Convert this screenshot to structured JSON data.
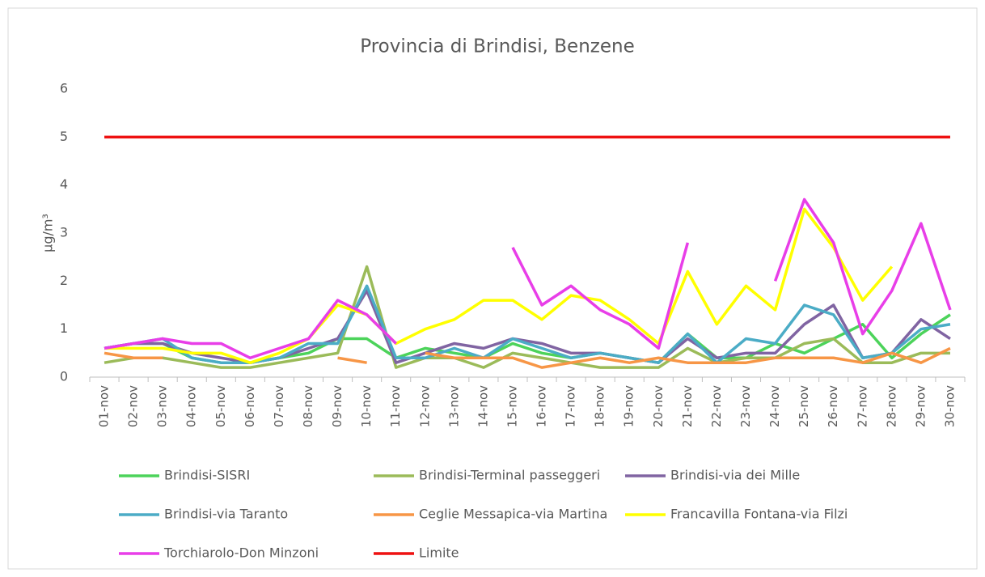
{
  "chart_data": {
    "type": "line",
    "title": "Provincia di Brindisi, Benzene",
    "y_label": "µg/m³",
    "categories": [
      "01-nov",
      "02-nov",
      "03-nov",
      "04-nov",
      "05-nov",
      "06-nov",
      "07-nov",
      "08-nov",
      "09-nov",
      "10-nov",
      "11-nov",
      "12-nov",
      "13-nov",
      "14-nov",
      "15-nov",
      "16-nov",
      "17-nov",
      "18-nov",
      "19-nov",
      "20-nov",
      "21-nov",
      "22-nov",
      "23-nov",
      "24-nov",
      "25-nov",
      "26-nov",
      "27-nov",
      "28-nov",
      "29-nov",
      "30-nov"
    ],
    "ylim": [
      0,
      6
    ],
    "yticks": [
      0,
      1,
      2,
      3,
      4,
      5,
      6
    ],
    "grid": false,
    "series": [
      {
        "name": "Brindisi-SISRI",
        "color": "#4cd35a",
        "values": [
          0.6,
          0.7,
          0.7,
          0.4,
          0.3,
          0.3,
          0.4,
          0.5,
          0.8,
          0.8,
          0.4,
          0.6,
          0.5,
          0.4,
          0.7,
          0.5,
          0.4,
          0.5,
          0.4,
          0.3,
          0.9,
          0.4,
          0.4,
          0.7,
          0.5,
          0.8,
          1.1,
          0.4,
          0.9,
          1.3
        ]
      },
      {
        "name": "Brindisi-Terminal passeggeri",
        "color": "#9bbb59",
        "values": [
          0.3,
          0.4,
          0.4,
          0.3,
          0.2,
          0.2,
          0.3,
          0.4,
          0.5,
          2.3,
          0.2,
          0.4,
          0.4,
          0.2,
          0.5,
          0.4,
          0.3,
          0.2,
          0.2,
          0.2,
          0.6,
          0.3,
          0.4,
          0.4,
          0.7,
          0.8,
          0.3,
          0.3,
          0.5,
          0.5
        ]
      },
      {
        "name": "Brindisi-via dei Mille",
        "color": "#8064a2",
        "values": [
          0.6,
          0.7,
          0.7,
          0.5,
          0.4,
          0.3,
          0.4,
          0.6,
          0.8,
          1.8,
          0.3,
          0.5,
          0.7,
          0.6,
          0.8,
          0.7,
          0.5,
          0.5,
          0.4,
          0.3,
          0.8,
          0.4,
          0.5,
          0.5,
          1.1,
          1.5,
          0.4,
          0.5,
          1.2,
          0.8
        ]
      },
      {
        "name": "Brindisi-via Taranto",
        "color": "#4bacc6",
        "values": [
          0.6,
          0.7,
          0.8,
          0.4,
          0.3,
          0.3,
          0.4,
          0.7,
          0.7,
          1.9,
          0.4,
          0.4,
          0.6,
          0.4,
          0.8,
          0.6,
          0.4,
          0.5,
          0.4,
          0.3,
          0.9,
          0.3,
          0.8,
          0.7,
          1.5,
          1.3,
          0.4,
          0.5,
          1.0,
          1.1
        ]
      },
      {
        "name": "Ceglie Messapica-via Martina",
        "color": "#f79646",
        "values": [
          0.5,
          0.4,
          0.4,
          null,
          null,
          null,
          null,
          null,
          0.4,
          0.3,
          null,
          0.5,
          0.4,
          0.4,
          0.4,
          0.2,
          0.3,
          0.4,
          0.3,
          0.4,
          0.3,
          0.3,
          0.3,
          0.4,
          0.4,
          0.4,
          0.3,
          0.5,
          0.3,
          0.6
        ]
      },
      {
        "name": "Francavilla Fontana-via Filzi",
        "color": "#ffff00",
        "values": [
          0.6,
          0.6,
          0.6,
          0.5,
          0.5,
          0.3,
          0.5,
          0.8,
          1.5,
          1.3,
          0.7,
          1.0,
          1.2,
          1.6,
          1.6,
          1.2,
          1.7,
          1.6,
          1.2,
          0.7,
          2.2,
          1.1,
          1.9,
          1.4,
          3.5,
          2.7,
          1.6,
          2.3,
          null,
          null
        ]
      },
      {
        "name": "Torchiarolo-Don Minzoni",
        "color": "#e83ee8",
        "values": [
          0.6,
          0.7,
          0.8,
          0.7,
          0.7,
          0.4,
          0.6,
          0.8,
          1.6,
          1.3,
          0.7,
          null,
          null,
          null,
          2.7,
          1.5,
          1.9,
          1.4,
          1.1,
          0.6,
          2.8,
          null,
          null,
          2.0,
          3.7,
          2.8,
          0.9,
          1.8,
          3.2,
          1.4
        ]
      },
      {
        "name": "Limite",
        "color": "#ee1111",
        "values": [
          5,
          5,
          5,
          5,
          5,
          5,
          5,
          5,
          5,
          5,
          5,
          5,
          5,
          5,
          5,
          5,
          5,
          5,
          5,
          5,
          5,
          5,
          5,
          5,
          5,
          5,
          5,
          5,
          5,
          5
        ]
      }
    ]
  }
}
